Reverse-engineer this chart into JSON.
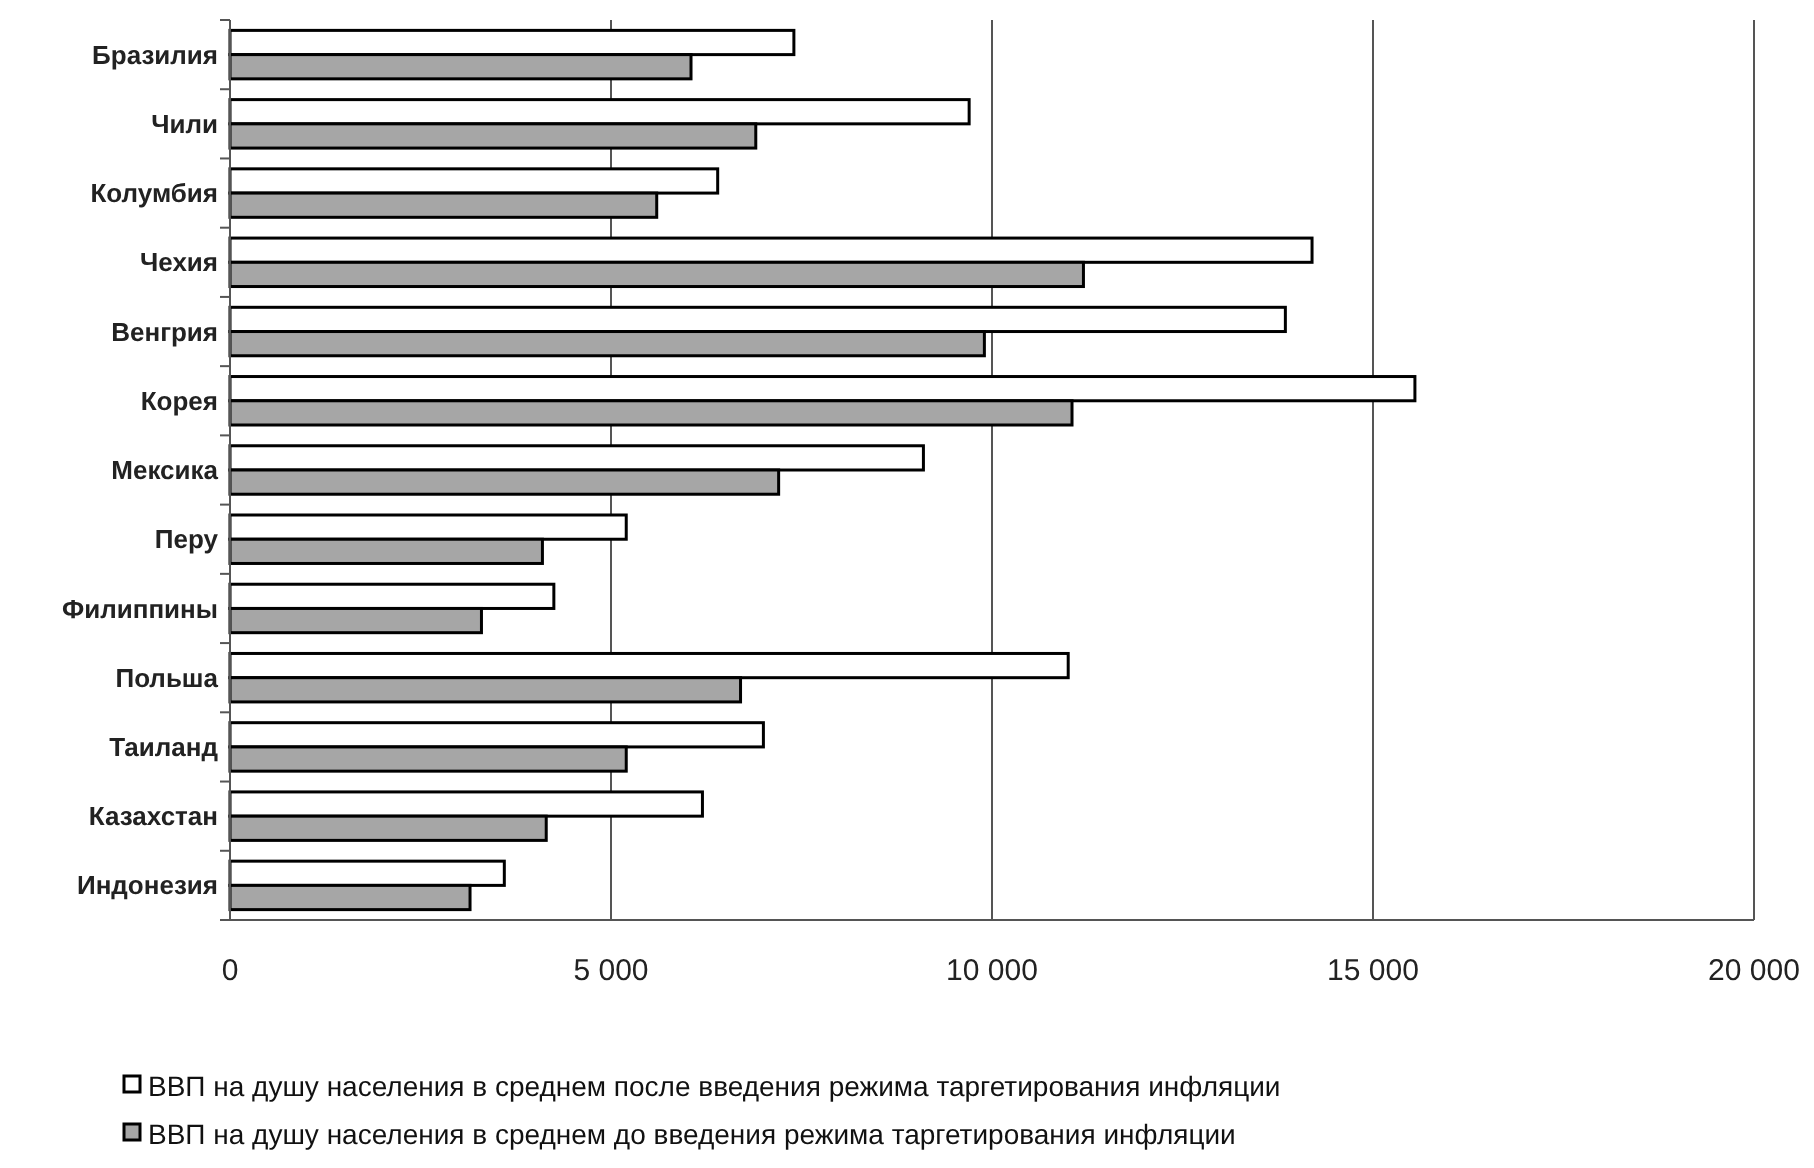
{
  "chart_data": {
    "type": "bar",
    "orientation": "horizontal",
    "categories": [
      "Бразилия",
      "Чили",
      "Колумбия",
      "Чехия",
      "Венгрия",
      "Корея",
      "Мексика",
      "Перу",
      "Филиппины",
      "Польша",
      "Таиланд",
      "Казахстан",
      "Индонезия"
    ],
    "series": [
      {
        "name": "ВВП на душу населения в среднем после введения режима таргетирования инфляции",
        "color": "#ffffff",
        "values": [
          7400,
          9700,
          6400,
          14200,
          13850,
          15550,
          9100,
          5200,
          4250,
          11000,
          7000,
          6200,
          3600
        ]
      },
      {
        "name": "ВВП на душу населения в среднем до введения режима таргетирования инфляции",
        "color": "#a6a6a6",
        "values": [
          6050,
          6900,
          5600,
          11200,
          9900,
          11050,
          7200,
          4100,
          3300,
          6700,
          5200,
          4150,
          3150
        ]
      }
    ],
    "xlim": [
      0,
      20000
    ],
    "xticks": [
      {
        "value": 0,
        "label": "0"
      },
      {
        "value": 5000,
        "label": "5 000"
      },
      {
        "value": 10000,
        "label": "10 000"
      },
      {
        "value": 15000,
        "label": "15 000"
      },
      {
        "value": 20000,
        "label": "20 000"
      }
    ],
    "grid": "x",
    "legend": "bottom"
  }
}
